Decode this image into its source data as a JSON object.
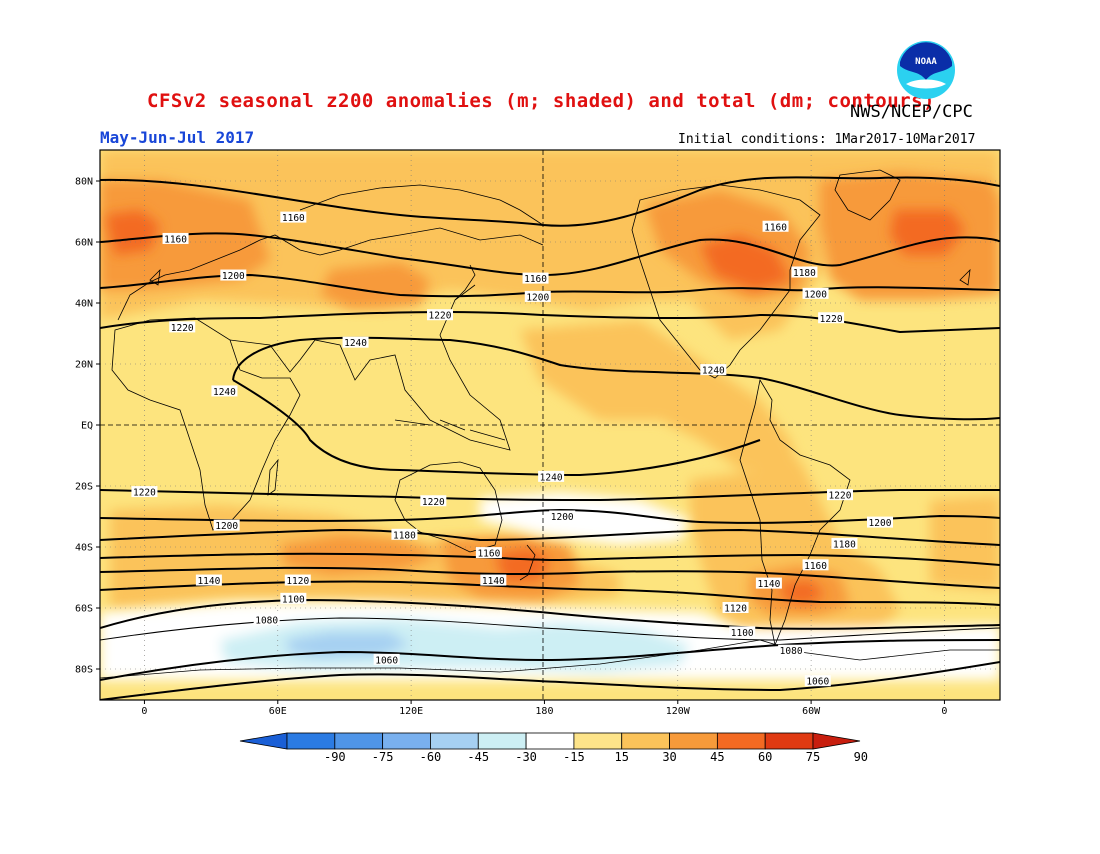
{
  "header": {
    "title": "CFSv2 seasonal z200 anomalies (m; shaded) and total (dm; contours)",
    "source": "NWS/NCEP/CPC",
    "period": "May-Jun-Jul 2017",
    "initial_conditions": "Initial conditions: 1Mar2017-10Mar2017",
    "logo_text": "NOAA"
  },
  "axes": {
    "lat_labels": [
      "80N",
      "60N",
      "40N",
      "20N",
      "EQ",
      "20S",
      "40S",
      "60S",
      "80S"
    ],
    "lat_values": [
      80,
      60,
      40,
      20,
      0,
      -20,
      -40,
      -60,
      -80
    ],
    "lon_labels": [
      "0",
      "60E",
      "120E",
      "180",
      "120W",
      "60W",
      "0"
    ],
    "lon_values": [
      0,
      60,
      120,
      180,
      240,
      300,
      360
    ]
  },
  "colorbar": {
    "labels": [
      "-90",
      "-75",
      "-60",
      "-45",
      "-30",
      "-15",
      "15",
      "30",
      "45",
      "60",
      "75",
      "90"
    ],
    "colors": [
      "#1a5fd6",
      "#2b7be3",
      "#4f95e8",
      "#79b0ee",
      "#a6d0f2",
      "#cdeff4",
      "#ffffff",
      "#fde48a",
      "#fbc35a",
      "#f79a3a",
      "#f36a22",
      "#e03a12",
      "#c81e0e"
    ]
  },
  "colors": {
    "land_bg": "#fde47e",
    "title": "#e01010",
    "period": "#1846d8"
  },
  "contours": [
    {
      "label": "1160",
      "segments": [
        {
          "text": "1160",
          "lon": 14,
          "lat": 61
        },
        {
          "text": "1160",
          "lon": 67,
          "lat": 68
        },
        {
          "text": "1160",
          "lon": 176,
          "lat": 48
        },
        {
          "text": "1160",
          "lon": 284,
          "lat": 65
        }
      ]
    },
    {
      "label": "1180",
      "segments": [
        {
          "text": "1180",
          "lon": 297,
          "lat": 50
        }
      ]
    },
    {
      "label": "1200",
      "segments": [
        {
          "text": "1200",
          "lon": 40,
          "lat": 49
        },
        {
          "text": "1200",
          "lon": 177,
          "lat": 42
        },
        {
          "text": "1200",
          "lon": 302,
          "lat": 43
        }
      ]
    },
    {
      "label": "1220",
      "segments": [
        {
          "text": "1220",
          "lon": 17,
          "lat": 32
        },
        {
          "text": "1220",
          "lon": 133,
          "lat": 36
        },
        {
          "text": "1220",
          "lon": 309,
          "lat": 35
        }
      ]
    },
    {
      "label": "1240",
      "segments": [
        {
          "text": "1240",
          "lon": 95,
          "lat": 27
        },
        {
          "text": "1240",
          "lon": 36,
          "lat": 11
        },
        {
          "text": "1240",
          "lon": 256,
          "lat": 18
        },
        {
          "text": "1240",
          "lon": 183,
          "lat": -17
        }
      ]
    },
    {
      "label": "1220s",
      "segments": [
        {
          "text": "1220",
          "lon": 0,
          "lat": -22
        },
        {
          "text": "1220",
          "lon": 130,
          "lat": -25
        },
        {
          "text": "1220",
          "lon": 313,
          "lat": -23
        }
      ]
    },
    {
      "label": "1200s",
      "segments": [
        {
          "text": "1200",
          "lon": 37,
          "lat": -33
        },
        {
          "text": "1200",
          "lon": 188,
          "lat": -30
        },
        {
          "text": "1200",
          "lon": 331,
          "lat": -32
        }
      ]
    },
    {
      "label": "1180s",
      "segments": [
        {
          "text": "1180",
          "lon": 117,
          "lat": -36
        },
        {
          "text": "1180",
          "lon": 315,
          "lat": -39
        }
      ]
    },
    {
      "label": "1160s",
      "segments": [
        {
          "text": "1160",
          "lon": 155,
          "lat": -42
        },
        {
          "text": "1160",
          "lon": 302,
          "lat": -46
        }
      ]
    },
    {
      "label": "1140s",
      "segments": [
        {
          "text": "1140",
          "lon": 29,
          "lat": -51
        },
        {
          "text": "1140",
          "lon": 157,
          "lat": -51
        },
        {
          "text": "1140",
          "lon": 281,
          "lat": -52
        }
      ]
    },
    {
      "label": "1120s",
      "segments": [
        {
          "text": "1120",
          "lon": 69,
          "lat": -51
        },
        {
          "text": "1120",
          "lon": 266,
          "lat": -60
        }
      ]
    },
    {
      "label": "1100s",
      "segments": [
        {
          "text": "1100",
          "lon": 67,
          "lat": -57
        },
        {
          "text": "1100",
          "lon": 269,
          "lat": -68
        }
      ]
    },
    {
      "label": "1080s",
      "segments": [
        {
          "text": "1080",
          "lon": 55,
          "lat": -64
        },
        {
          "text": "1080",
          "lon": 291,
          "lat": -74
        }
      ]
    },
    {
      "label": "1060s",
      "segments": [
        {
          "text": "1060",
          "lon": 109,
          "lat": -77
        },
        {
          "text": "1060",
          "lon": 303,
          "lat": -84
        }
      ]
    }
  ]
}
